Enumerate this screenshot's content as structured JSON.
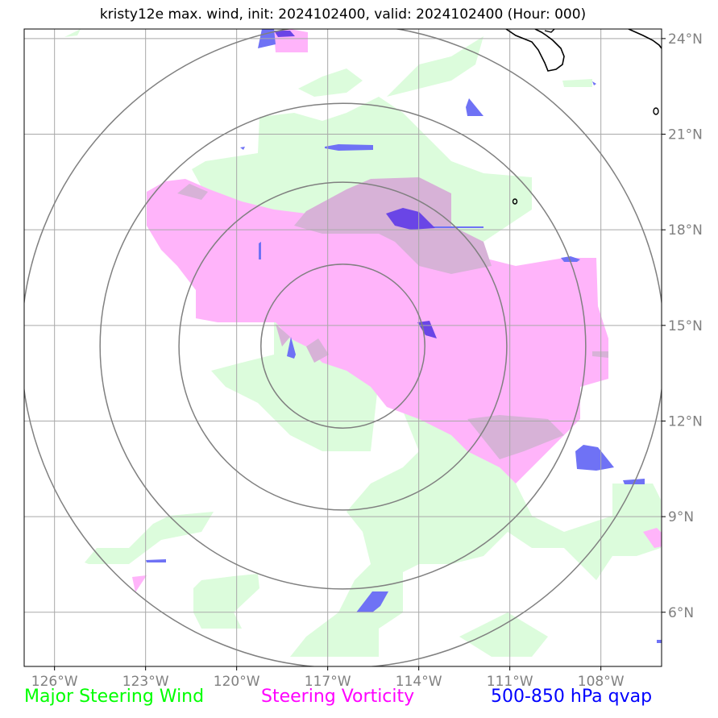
{
  "title": "kristy12e max. wind, init: 2024102400, valid: 2024102400 (Hour: 000)",
  "map": {
    "lon_range": [
      -127,
      -106
    ],
    "lat_range": [
      4.3,
      24.3
    ],
    "lon_ticks": [
      {
        "value": -126,
        "label": "126°W"
      },
      {
        "value": -123,
        "label": "123°W"
      },
      {
        "value": -120,
        "label": "120°W"
      },
      {
        "value": -117,
        "label": "117°W"
      },
      {
        "value": -114,
        "label": "114°W"
      },
      {
        "value": -111,
        "label": "111°W"
      },
      {
        "value": -108,
        "label": "108°W"
      }
    ],
    "lat_ticks": [
      {
        "value": 24,
        "label": "24°N"
      },
      {
        "value": 21,
        "label": "21°N"
      },
      {
        "value": 18,
        "label": "18°N"
      },
      {
        "value": 15,
        "label": "15°N"
      },
      {
        "value": 12,
        "label": "12°N"
      },
      {
        "value": 9,
        "label": "9°N"
      },
      {
        "value": 6,
        "label": "6°N"
      }
    ],
    "storm_center": {
      "lon": -116.5,
      "lat": 14.35
    },
    "range_rings_deg": [
      2.7,
      5.4,
      8.0,
      10.6
    ],
    "grid_color": "#a9a9a9",
    "ring_color": "#808080",
    "colors": {
      "steering_wind": "#dcfcdc",
      "steering_vorticity": "#ffb4fa",
      "overlap": "#d7b2d7",
      "qvap": "#6f72f5",
      "qvap_dark": "#6a45e6",
      "coast": "#000000"
    }
  },
  "legend": {
    "steering_wind": {
      "label": "Major Steering Wind",
      "color": "#00ff00"
    },
    "steering_vorticity": {
      "label": "Steering Vorticity",
      "color": "#ff00ff"
    },
    "qvap": {
      "label": "500-850 hPa qvap",
      "color": "#0000ff"
    }
  }
}
